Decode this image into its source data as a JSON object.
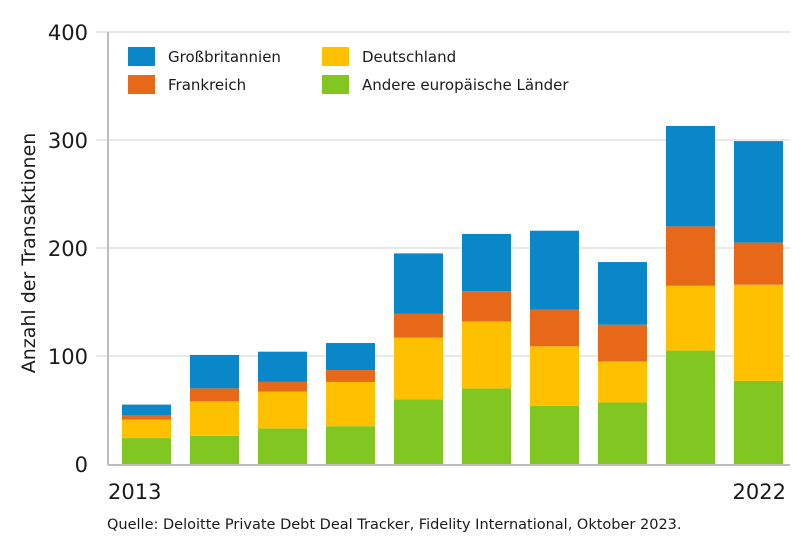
{
  "chart_data": {
    "type": "bar",
    "stacked": true,
    "title": "",
    "xlabel": "",
    "ylabel": "Anzahl der Transaktionen",
    "ylim": [
      0,
      400
    ],
    "yticks": [
      0,
      100,
      200,
      300,
      400
    ],
    "grid": true,
    "categories": [
      "2013",
      "2014",
      "2015",
      "2016",
      "2017",
      "2018",
      "2019",
      "2020",
      "2021",
      "2022"
    ],
    "xtick_labels_shown": [
      "2013",
      "2022"
    ],
    "legend_position": "top-left",
    "series": [
      {
        "name": "Andere europäische Länder",
        "color": "#82c622",
        "values": [
          24,
          26,
          33,
          35,
          60,
          70,
          54,
          57,
          105,
          77
        ]
      },
      {
        "name": "Deutschland",
        "color": "#ffc000",
        "values": [
          17,
          32,
          34,
          41,
          57,
          62,
          55,
          38,
          60,
          89
        ]
      },
      {
        "name": "Frankreich",
        "color": "#e8681a",
        "values": [
          4,
          12,
          9,
          11,
          22,
          28,
          34,
          34,
          55,
          39
        ]
      },
      {
        "name": "Großbritannien",
        "color": "#0a87c9",
        "values": [
          10,
          31,
          28,
          25,
          56,
          53,
          73,
          58,
          93,
          94
        ]
      }
    ],
    "legend_order": [
      "Großbritannien",
      "Frankreich",
      "Deutschland",
      "Andere europäische Länder"
    ]
  },
  "source": "Quelle: Deloitte Private Debt Deal Tracker, Fidelity International, Oktober 2023."
}
